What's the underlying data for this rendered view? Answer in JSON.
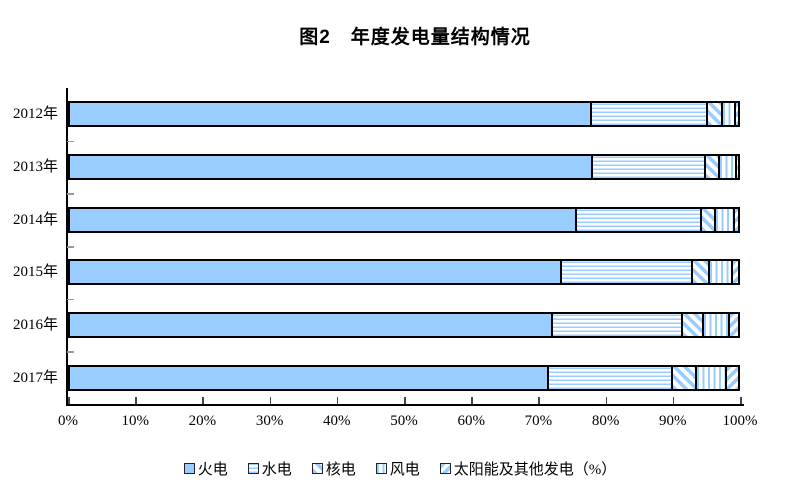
{
  "title": "图2　年度发电量结构情况",
  "chart_data": {
    "type": "bar",
    "orientation": "horizontal",
    "stacked": true,
    "title": "图2　年度发电量结构情况",
    "unit": "%",
    "categories": [
      "2012年",
      "2013年",
      "2014年",
      "2015年",
      "2016年",
      "2017年"
    ],
    "series": [
      {
        "name": "火电",
        "pattern": "solid-fill",
        "values": [
          78.0,
          78.1,
          75.7,
          73.5,
          72.1,
          71.6
        ]
      },
      {
        "name": "水电",
        "pattern": "horizontal-stripe",
        "values": [
          17.3,
          16.9,
          18.6,
          19.5,
          19.4,
          18.4
        ]
      },
      {
        "name": "核电",
        "pattern": "diagonal-back",
        "values": [
          2.2,
          2.0,
          2.2,
          2.6,
          3.1,
          3.6
        ]
      },
      {
        "name": "风电",
        "pattern": "vertical-stripe",
        "values": [
          1.9,
          2.5,
          2.8,
          3.3,
          3.9,
          4.4
        ]
      },
      {
        "name": "太阳能及其他发电（%）",
        "pattern": "diagonal-fwd",
        "values": [
          0.6,
          0.5,
          0.7,
          1.1,
          1.5,
          2.0
        ]
      }
    ],
    "x_ticks": [
      "0%",
      "10%",
      "20%",
      "30%",
      "40%",
      "50%",
      "60%",
      "70%",
      "80%",
      "90%",
      "100%"
    ],
    "xlim": [
      0,
      100
    ],
    "grid": false,
    "legend_position": "bottom",
    "bar_color": "#99CCFF",
    "border_color": "#000000",
    "background": "#ffffff"
  }
}
